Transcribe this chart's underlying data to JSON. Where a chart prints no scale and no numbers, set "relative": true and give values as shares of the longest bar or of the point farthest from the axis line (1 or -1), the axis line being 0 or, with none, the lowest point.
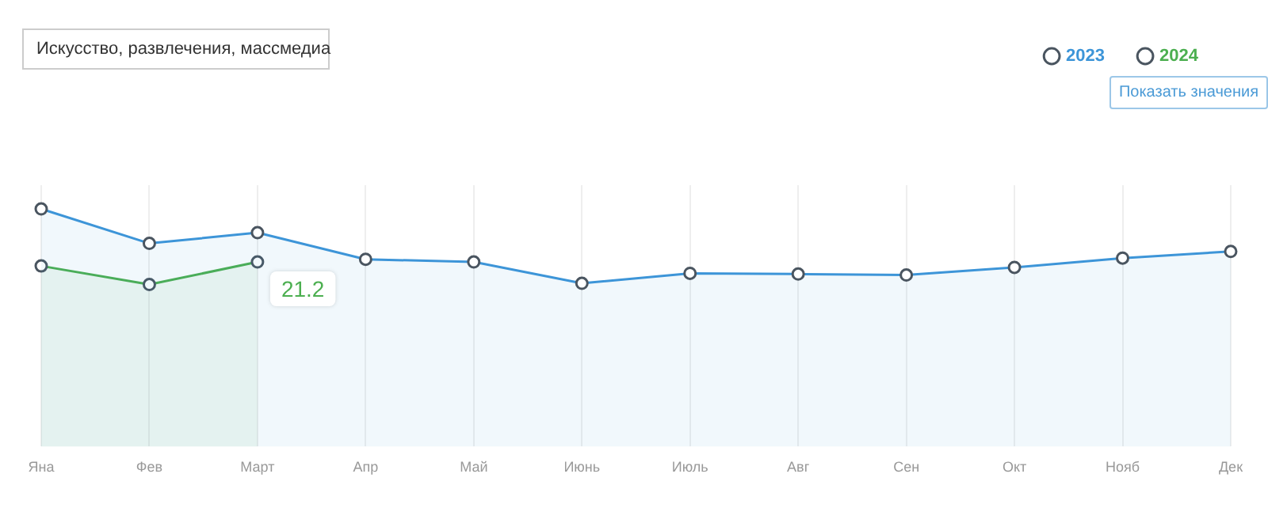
{
  "chart_data": {
    "type": "area",
    "relative": true,
    "categories": [
      "Яна",
      "Фев",
      "Март",
      "Апр",
      "Май",
      "Июнь",
      "Июль",
      "Авг",
      "Сен",
      "Окт",
      "Нояб",
      "Дек"
    ],
    "series": [
      {
        "name": "2023",
        "color": "#3d95d8",
        "values": [
          1,
          0.855,
          0.9,
          0.788,
          0.777,
          0.687,
          0.729,
          0.726,
          0.722,
          0.754,
          0.793,
          0.821
        ]
      },
      {
        "name": "2024",
        "color": "#4caf50",
        "values": [
          0.76,
          0.682,
          0.777,
          null,
          null,
          null,
          null,
          null,
          null,
          null,
          null,
          null
        ]
      }
    ],
    "annotations": [
      "Искусство, развлечения, массмедиа",
      "Показать значения",
      {
        "text": "21.2",
        "x": "Март",
        "y": 0.777
      }
    ],
    "grid": "x",
    "legend": "top right",
    "marker": "circle",
    "line_style": "solid"
  }
}
